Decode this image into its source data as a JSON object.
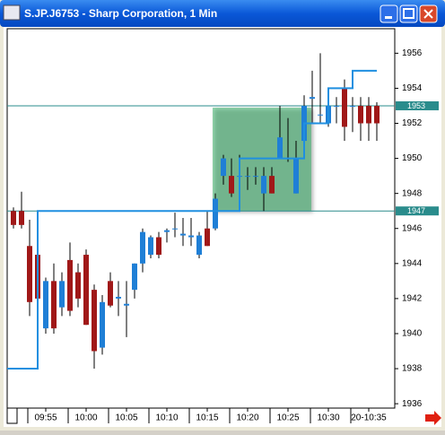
{
  "chart_data": {
    "type": "candlestick",
    "title": "S.JP.J6753 - Sharp Corporation, 1 Min",
    "categories": [
      null,
      null,
      null,
      null,
      "09:55",
      null,
      null,
      null,
      null,
      "10:00",
      null,
      null,
      null,
      null,
      "10:05",
      null,
      null,
      null,
      null,
      "10:10",
      null,
      null,
      null,
      null,
      "10:15",
      null,
      null,
      null,
      null,
      "10:20",
      null,
      null,
      null,
      null,
      "10:25",
      null,
      null,
      null,
      null,
      "10:30",
      null,
      null,
      null,
      null,
      "20-10:35",
      null
    ],
    "open": [
      1947,
      1947,
      1945,
      1944.5,
      1940.3,
      1943,
      1941.5,
      1944.2,
      1943.5,
      1944.5,
      1942.5,
      1939.2,
      1943,
      1942,
      1941.6,
      1942.5,
      1944,
      1944.5,
      1945.5,
      1945.8,
      1946,
      1945.6,
      1945.5,
      1944.5,
      1946,
      1946,
      1949,
      1949,
      1949,
      1949,
      1949,
      1948,
      1949,
      1950,
      1950,
      1948,
      1951,
      1953.4,
      1952.5,
      1952,
      1953,
      1954,
      1953,
      1953,
      1953,
      1953
    ],
    "high": [
      1947.2,
      1948.1,
      1946.5,
      1945,
      1943.2,
      1944,
      1943.5,
      1945.2,
      1944,
      1944.8,
      1942.8,
      1942.2,
      1943.5,
      1943,
      1943,
      1944,
      1946,
      1945.6,
      1945.8,
      1946,
      1946.9,
      1946.6,
      1946.6,
      1945.8,
      1947,
      1948,
      1950.2,
      1950,
      1950.2,
      1949.5,
      1949.5,
      1949.5,
      1949.5,
      1953,
      1952.3,
      1951,
      1953.6,
      1955,
      1956,
      1953,
      1953.5,
      1954.5,
      1953.5,
      1953.5,
      1953.5,
      1953.2
    ],
    "low": [
      1946,
      1946,
      1941,
      1941.5,
      1940,
      1940,
      1941,
      1941,
      1941.5,
      1940.5,
      1938,
      1938.8,
      1941.5,
      1941,
      1939.8,
      1942,
      1943.5,
      1944.3,
      1944.3,
      1945.2,
      1945.5,
      1945,
      1945,
      1944.3,
      1945,
      1945.9,
      1948.5,
      1947.8,
      1948,
      1948.2,
      1948.5,
      1947,
      1948,
      1950,
      1949.8,
      1948,
      1950.8,
      1952,
      1952,
      1951.8,
      1952,
      1951,
      1951.5,
      1951,
      1951,
      1951
    ],
    "close": [
      1946.2,
      1946.2,
      1941.8,
      1942,
      1943,
      1940.3,
      1943,
      1941.3,
      1942,
      1940.5,
      1939,
      1941.8,
      1941.6,
      1942.1,
      1941.7,
      1944,
      1945.8,
      1945.5,
      1944.5,
      1945.9,
      1946,
      1945.7,
      1945.6,
      1945.6,
      1945,
      1947.7,
      1950,
      1948,
      1949,
      1949,
      1949,
      1949,
      1948,
      1951.2,
      1950,
      1950,
      1953,
      1953.5,
      1952.5,
      1953,
      1953,
      1951.8,
      1953,
      1952,
      1952,
      1952
    ],
    "overlay": [
      1938,
      1938,
      1938,
      1947,
      1947,
      1947,
      1947,
      1947,
      1947,
      1947,
      1947,
      1947,
      1947,
      1947,
      1947,
      1947,
      1947,
      1947,
      1947,
      1947,
      1947,
      1947,
      1947,
      1947,
      1947,
      1947,
      1947,
      1947,
      1950,
      1950,
      1950,
      1950,
      1950,
      1950,
      1950,
      1950,
      1952,
      1952,
      1952,
      1954,
      1954,
      1954,
      1955,
      1955,
      1955,
      1955
    ],
    "up_color": "#1f7fd6",
    "down_color": "#a01818",
    "overlay_color": "#1f8fe0",
    "hline_color": "#2a8c8c",
    "hlines": [
      1953,
      1947
    ],
    "ylim": [
      1935.75,
      1957.4
    ],
    "yticks": [
      1936,
      1938,
      1940,
      1942,
      1944,
      1946,
      1948,
      1950,
      1952,
      1954,
      1956
    ]
  }
}
